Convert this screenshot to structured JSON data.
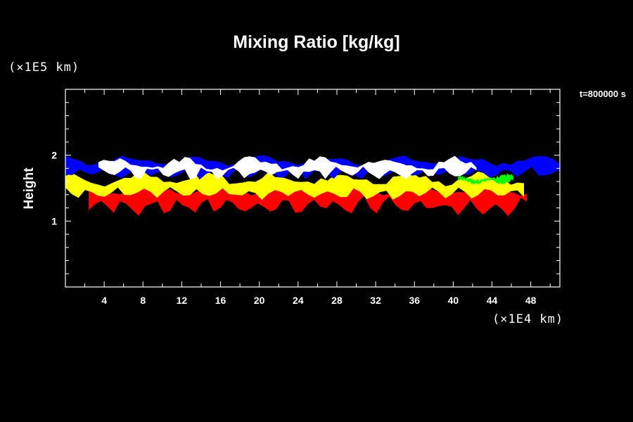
{
  "chart_data": {
    "type": "heatmap",
    "title": "Mixing Ratio [kg/kg]",
    "ylabel": "Height",
    "x_unit_label": "(×1E4 km)",
    "y_unit_label": "(×1E5 km)",
    "time_label": "t=800000 s",
    "xlim": [
      0,
      51
    ],
    "ylim": [
      0,
      3
    ],
    "x_ticks": [
      "4",
      "8",
      "12",
      "16",
      "20",
      "24",
      "28",
      "32",
      "36",
      "40",
      "44",
      "48"
    ],
    "x_tick_values": [
      4,
      8,
      12,
      16,
      20,
      24,
      28,
      32,
      36,
      40,
      44,
      48
    ],
    "y_ticks": [
      "1",
      "2"
    ],
    "y_tick_values": [
      1,
      2
    ],
    "grid": false,
    "background": "#000000",
    "layer_colors": {
      "blue": "#0000ff",
      "white": "#ffffff",
      "yellow": "#ffff00",
      "red": "#ff0000",
      "green": "#00ff00"
    },
    "layers": [
      {
        "color": "red",
        "x_range": [
          2.4,
          47.6
        ],
        "bottom": [
          1.06,
          1.39
        ],
        "top": [
          1.38,
          1.56
        ]
      },
      {
        "color": "yellow",
        "x_range": [
          0,
          47.3
        ],
        "bottom": [
          1.32,
          1.52
        ],
        "top": [
          1.52,
          1.76
        ]
      },
      {
        "color": "blue",
        "x_range": [
          0,
          51
        ],
        "bottom": [
          1.62,
          1.85
        ],
        "top": [
          1.83,
          2.01
        ]
      },
      {
        "color": "white",
        "x_range": [
          3.4,
          42.4
        ],
        "bottom": [
          1.62,
          1.85
        ],
        "top": [
          1.74,
          2.0
        ]
      },
      {
        "color": "green",
        "x_range": [
          40.5,
          46.2
        ],
        "bottom": [
          1.55,
          1.64
        ],
        "top": [
          1.6,
          1.73
        ]
      }
    ]
  }
}
